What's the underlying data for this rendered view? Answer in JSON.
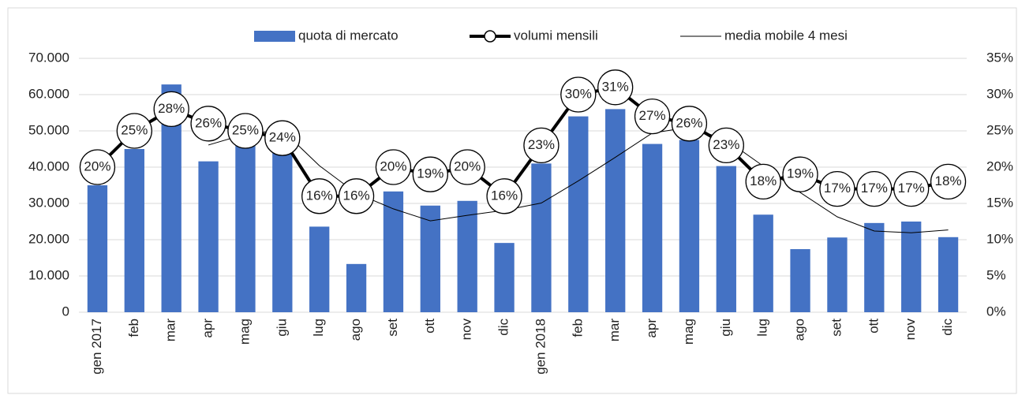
{
  "chart_data": {
    "type": "combo",
    "categories": [
      "gen 2017",
      "feb",
      "mar",
      "apr",
      "mag",
      "giu",
      "lug",
      "ago",
      "set",
      "ott",
      "nov",
      "dic",
      "gen 2018",
      "feb",
      "mar",
      "apr",
      "mag",
      "giu",
      "lug",
      "ago",
      "set",
      "ott",
      "nov",
      "dic"
    ],
    "series": [
      {
        "name": "quota di mercato",
        "type": "bar",
        "color": "#4472c4",
        "values": [
          35000,
          45000,
          62800,
          41600,
          47000,
          44000,
          23600,
          13300,
          33300,
          29400,
          30700,
          19100,
          41000,
          54000,
          56000,
          46400,
          47500,
          40300,
          26900,
          17400,
          20600,
          24600,
          25000,
          20700
        ]
      },
      {
        "name": "volumi mensili",
        "type": "line",
        "axis": "y2",
        "color": "#000000",
        "markers": true,
        "values": [
          20,
          25,
          28,
          26,
          25,
          24,
          16,
          16,
          20,
          19,
          20,
          16,
          23,
          30,
          31,
          27,
          26,
          23,
          18,
          19,
          17,
          17,
          17,
          18
        ],
        "value_labels": [
          "20%",
          "25%",
          "28%",
          "26%",
          "25%",
          "24%",
          "16%",
          "16%",
          "20%",
          "19%",
          "20%",
          "16%",
          "23%",
          "30%",
          "31%",
          "27%",
          "26%",
          "23%",
          "18%",
          "19%",
          "17%",
          "17%",
          "17%",
          "18%"
        ]
      },
      {
        "name": "media mobile 4 mesi",
        "type": "line",
        "color": "#000000",
        "markers": false,
        "values": [
          null,
          null,
          null,
          46100,
          49100,
          50200,
          40400,
          32800,
          28500,
          25200,
          26700,
          28100,
          30100,
          36200,
          42700,
          49400,
          51000,
          47500,
          40300,
          33000,
          26300,
          22400,
          21900,
          22700
        ]
      }
    ],
    "ylim": [
      0,
      70000
    ],
    "yticks": [
      0,
      {
        "value": 10000,
        "label": "10.000"
      },
      {
        "value": 20000,
        "label": "20.000"
      },
      {
        "value": 30000,
        "label": "30.000"
      },
      {
        "value": 40000,
        "label": "40.000"
      },
      {
        "value": 50000,
        "label": "50.000"
      },
      {
        "value": 60000,
        "label": "60.000"
      },
      {
        "value": 70000,
        "label": "70.000"
      }
    ],
    "y2lim": [
      0,
      35
    ],
    "y2ticks": [
      {
        "value": 0,
        "label": "0%"
      },
      {
        "value": 5,
        "label": "5%"
      },
      {
        "value": 10,
        "label": "10%"
      },
      {
        "value": 15,
        "label": "15%"
      },
      {
        "value": 20,
        "label": "20%"
      },
      {
        "value": 25,
        "label": "25%"
      },
      {
        "value": 30,
        "label": "30%"
      },
      {
        "value": 35,
        "label": "35%"
      }
    ],
    "grid": true,
    "legend": "top"
  }
}
